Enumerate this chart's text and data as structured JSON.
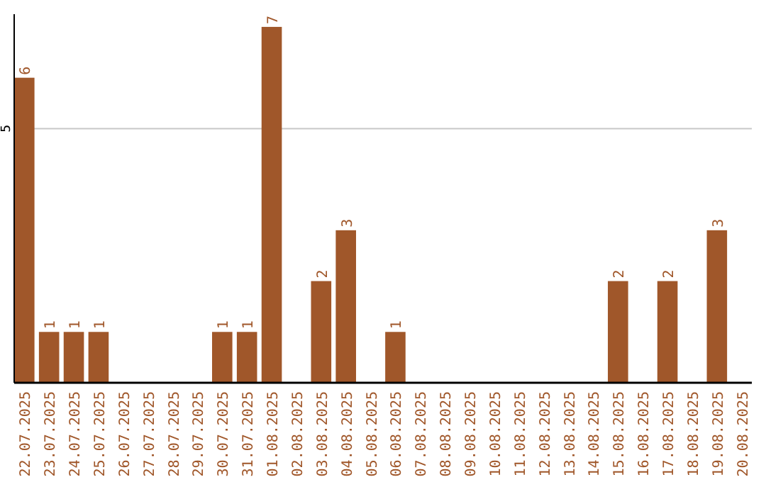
{
  "chart_data": {
    "type": "bar",
    "categories": [
      "22.07.2025",
      "23.07.2025",
      "24.07.2025",
      "25.07.2025",
      "26.07.2025",
      "27.07.2025",
      "28.07.2025",
      "29.07.2025",
      "30.07.2025",
      "31.07.2025",
      "01.08.2025",
      "02.08.2025",
      "03.08.2025",
      "04.08.2025",
      "05.08.2025",
      "06.08.2025",
      "07.08.2025",
      "08.08.2025",
      "09.08.2025",
      "10.08.2025",
      "11.08.2025",
      "12.08.2025",
      "13.08.2025",
      "14.08.2025",
      "15.08.2025",
      "16.08.2025",
      "17.08.2025",
      "18.08.2025",
      "19.08.2025",
      "20.08.2025"
    ],
    "values": [
      6,
      1,
      1,
      1,
      0,
      0,
      0,
      0,
      1,
      1,
      7,
      0,
      2,
      3,
      0,
      1,
      0,
      0,
      0,
      0,
      0,
      0,
      0,
      0,
      2,
      0,
      2,
      0,
      3,
      0
    ],
    "value_labels": [
      "6",
      "1",
      "1",
      "1",
      null,
      null,
      null,
      null,
      "1",
      "1",
      "7",
      null,
      "2",
      "3",
      null,
      "1",
      null,
      null,
      null,
      null,
      null,
      null,
      null,
      null,
      "2",
      null,
      "2",
      null,
      "3",
      null
    ],
    "color": "#a0572a",
    "ylim": [
      0,
      7.25
    ],
    "yticks": [
      5
    ],
    "grid": "y"
  }
}
